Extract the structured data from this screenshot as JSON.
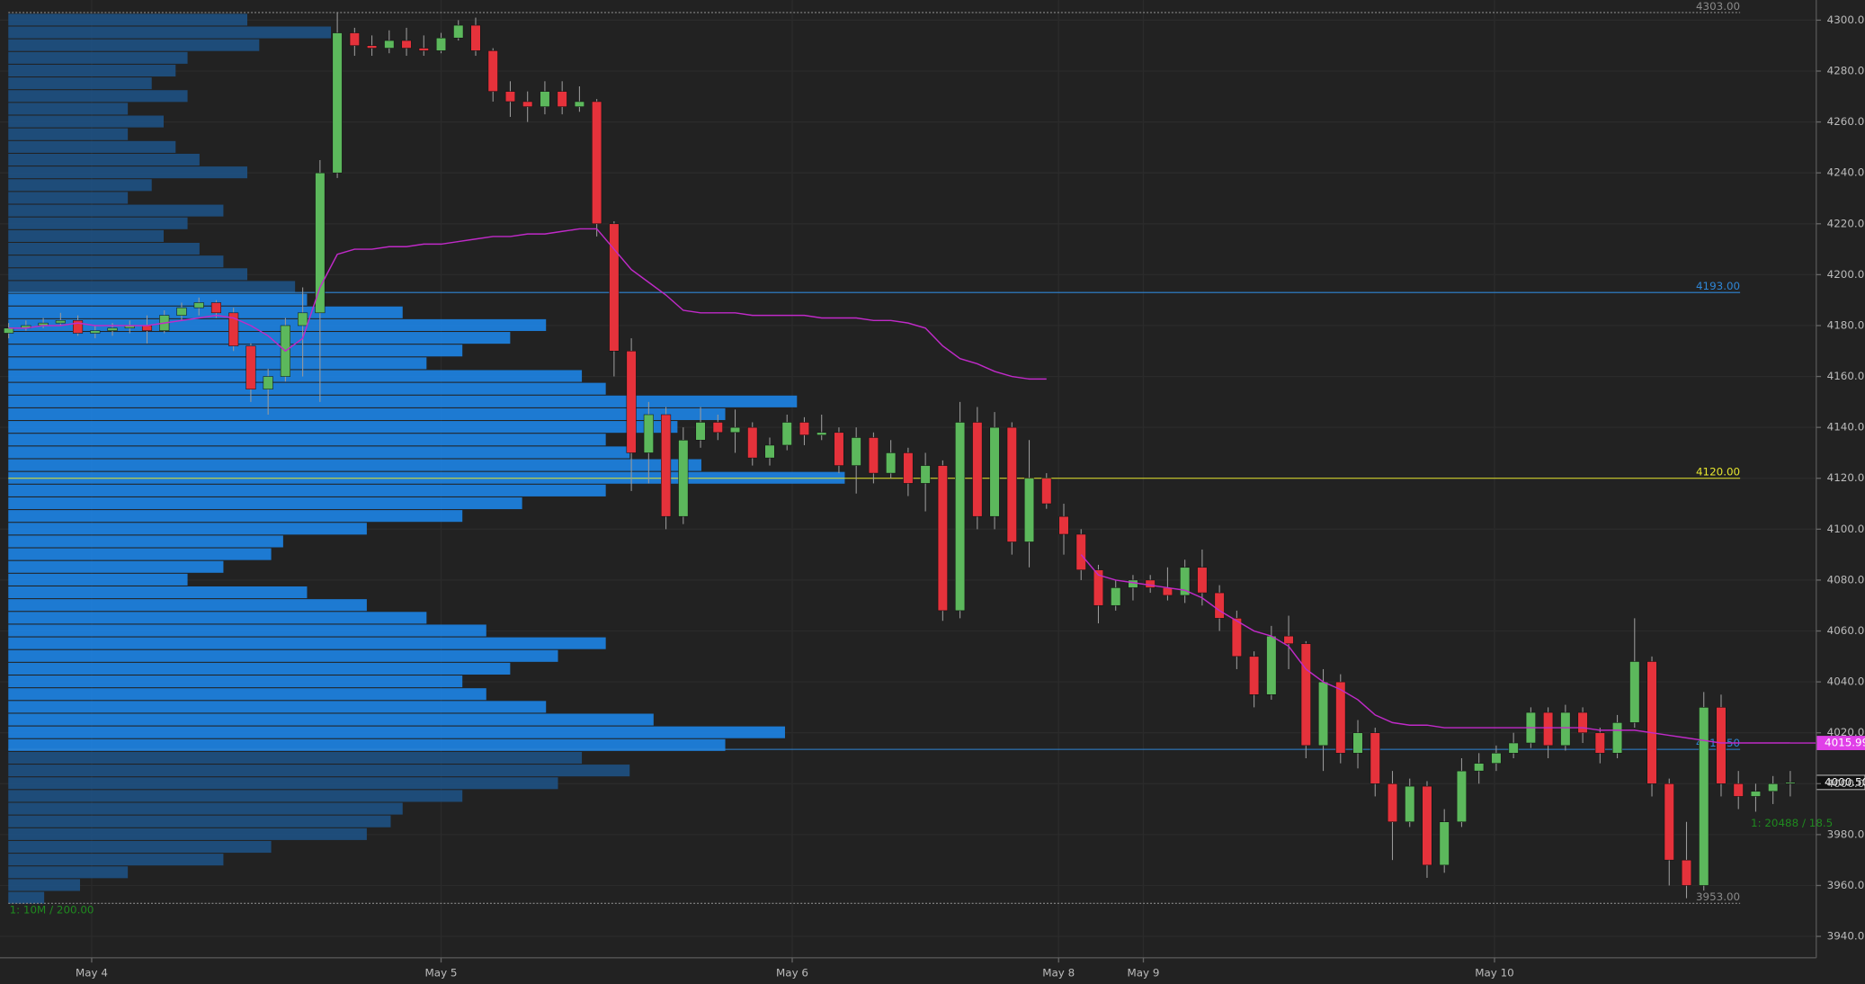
{
  "chart_data": {
    "type": "candlestick",
    "xlim": [
      -0.5,
      104.5
    ],
    "xticks": [
      {
        "value": 4.8,
        "label": "May 4"
      },
      {
        "value": 25.0,
        "label": "May 5"
      },
      {
        "value": 45.3,
        "label": "May 6"
      },
      {
        "value": 60.7,
        "label": "May 8"
      },
      {
        "value": 65.6,
        "label": "May 9"
      },
      {
        "value": 85.9,
        "label": "May 10"
      }
    ],
    "ylim": [
      3931.6,
      4307.9
    ],
    "yticks": [
      {
        "value": 3940,
        "label": "3940.00"
      },
      {
        "value": 3960,
        "label": "3960.00"
      },
      {
        "value": 3980,
        "label": "3980.00"
      },
      {
        "value": 4000,
        "label": "4000.00"
      },
      {
        "value": 4020,
        "label": "4020.00"
      },
      {
        "value": 4040,
        "label": "4040.00"
      },
      {
        "value": 4060,
        "label": "4060.00"
      },
      {
        "value": 4080,
        "label": "4080.00"
      },
      {
        "value": 4100,
        "label": "4100.00"
      },
      {
        "value": 4120,
        "label": "4120.00"
      },
      {
        "value": 4140,
        "label": "4140.00"
      },
      {
        "value": 4160,
        "label": "4160.00"
      },
      {
        "value": 4180,
        "label": "4180.00"
      },
      {
        "value": 4200,
        "label": "4200.00"
      },
      {
        "value": 4220,
        "label": "4220.00"
      },
      {
        "value": 4240,
        "label": "4240.00"
      },
      {
        "value": 4260,
        "label": "4260.00"
      },
      {
        "value": 4280,
        "label": "4280.00"
      },
      {
        "value": 4300,
        "label": "4300.00"
      }
    ],
    "grid": true,
    "up_color": "#5cb85c",
    "down_color": "#e5323b",
    "wick_color": "#9a9a9a",
    "open": [
      4177,
      4179,
      4180,
      4181,
      4182,
      4177,
      4178,
      4179,
      4180,
      4178,
      4184,
      4187,
      4189,
      4185,
      4172,
      4155,
      4160,
      4180,
      4185,
      4240,
      4295,
      4290,
      4289,
      4292,
      4289,
      4288,
      4293,
      4298,
      4288,
      4272,
      4268,
      4266,
      4272,
      4266,
      4268,
      4220,
      4170,
      4130,
      4145,
      4105,
      4135,
      4142,
      4138,
      4140,
      4128,
      4133,
      4142,
      4137,
      4138,
      4125,
      4136,
      4122,
      4130,
      4118,
      4125,
      4068,
      4142,
      4105,
      4140,
      4095,
      4120,
      4105,
      4098,
      4084,
      4070,
      4077,
      4080,
      4077,
      4074,
      4085,
      4075,
      4065,
      4050,
      4035,
      4058,
      4055,
      4015,
      4040,
      4012,
      4020,
      4000,
      3985,
      3999,
      3968,
      3985,
      4005,
      4008,
      4012,
      4016,
      4028,
      4015,
      4028,
      4020,
      4012,
      4024,
      4048,
      4000,
      3970,
      3960,
      4030,
      4000,
      3995,
      3997,
      4000
    ],
    "high": [
      4181,
      4182,
      4183,
      4185,
      4184,
      4180,
      4181,
      4182,
      4184,
      4186,
      4189,
      4191,
      4190,
      4187,
      4173,
      4163,
      4183,
      4195,
      4245,
      4303,
      4297,
      4294,
      4296,
      4297,
      4294,
      4295,
      4300,
      4301,
      4289,
      4276,
      4272,
      4276,
      4276,
      4274,
      4269,
      4221,
      4175,
      4150,
      4148,
      4140,
      4148,
      4145,
      4147,
      4142,
      4136,
      4145,
      4144,
      4145,
      4140,
      4140,
      4138,
      4135,
      4132,
      4130,
      4127,
      4150,
      4148,
      4146,
      4142,
      4135,
      4122,
      4110,
      4100,
      4086,
      4080,
      4082,
      4082,
      4085,
      4088,
      4092,
      4078,
      4068,
      4052,
      4062,
      4066,
      4056,
      4045,
      4043,
      4025,
      4022,
      4005,
      4002,
      4001,
      3990,
      4010,
      4012,
      4015,
      4020,
      4030,
      4030,
      4031,
      4030,
      4022,
      4027,
      4065,
      4050,
      4002,
      3985,
      4036,
      4035,
      4005,
      4000,
      4003,
      4005
    ],
    "low": [
      4175,
      4178,
      4179,
      4180,
      4176,
      4175,
      4176,
      4177,
      4173,
      4177,
      4182,
      4184,
      4183,
      4170,
      4150,
      4145,
      4158,
      4160,
      4150,
      4238,
      4286,
      4286,
      4287,
      4286,
      4286,
      4287,
      4292,
      4286,
      4268,
      4262,
      4260,
      4263,
      4263,
      4264,
      4215,
      4160,
      4115,
      4118,
      4100,
      4102,
      4132,
      4135,
      4130,
      4125,
      4125,
      4131,
      4133,
      4135,
      4122,
      4114,
      4118,
      4120,
      4113,
      4107,
      4064,
      4065,
      4100,
      4100,
      4090,
      4085,
      4108,
      4090,
      4080,
      4063,
      4068,
      4072,
      4075,
      4072,
      4071,
      4070,
      4060,
      4045,
      4030,
      4033,
      4045,
      4010,
      4005,
      4008,
      4006,
      3995,
      3970,
      3983,
      3963,
      3965,
      3983,
      4000,
      4005,
      4010,
      4014,
      4010,
      4013,
      4016,
      4008,
      4010,
      4022,
      3995,
      3960,
      3955,
      3958,
      3995,
      3990,
      3989,
      3992,
      3995
    ],
    "close": [
      4179,
      4180,
      4181,
      4182,
      4177,
      4178,
      4179,
      4180,
      4178,
      4184,
      4187,
      4189,
      4185,
      4172,
      4155,
      4160,
      4180,
      4185,
      4240,
      4295,
      4290,
      4289,
      4292,
      4289,
      4288,
      4293,
      4298,
      4288,
      4272,
      4268,
      4266,
      4272,
      4266,
      4268,
      4220,
      4170,
      4130,
      4145,
      4105,
      4135,
      4142,
      4138,
      4140,
      4128,
      4133,
      4142,
      4137,
      4138,
      4125,
      4136,
      4122,
      4130,
      4118,
      4125,
      4068,
      4142,
      4105,
      4140,
      4095,
      4120,
      4110,
      4098,
      4084,
      4070,
      4077,
      4080,
      4077,
      4074,
      4085,
      4075,
      4065,
      4050,
      4035,
      4058,
      4055,
      4015,
      4040,
      4012,
      4020,
      4000,
      3985,
      3999,
      3968,
      3985,
      4005,
      4008,
      4012,
      4016,
      4028,
      4015,
      4028,
      4020,
      4012,
      4024,
      4048,
      4000,
      3970,
      3960,
      4030,
      4000,
      3995,
      3997,
      4000,
      4000.5
    ],
    "vwap": {
      "color": "#c02ac8",
      "values": [
        4179,
        4179,
        4180,
        4180,
        4181,
        4180,
        4180,
        4180,
        4180,
        4181,
        4182,
        4183,
        4184,
        4183,
        4180,
        4176,
        4170,
        4175,
        4195,
        4208,
        4210,
        4210,
        4211,
        4211,
        4212,
        4212,
        4213,
        4214,
        4215,
        4215,
        4216,
        4216,
        4217,
        4218,
        4218,
        4210,
        4202,
        4197,
        4192,
        4186,
        4185,
        4185,
        4185,
        4184,
        4184,
        4184,
        4184,
        4183,
        4183,
        4183,
        4182,
        4182,
        4181,
        4179,
        4172,
        4167,
        4165,
        4162,
        4160,
        4159,
        4159,
        null,
        4090,
        4082,
        4080,
        4079,
        4078,
        4077,
        4076,
        4073,
        4068,
        4064,
        4060,
        4058,
        4054,
        4045,
        4040,
        4037,
        4033,
        4027,
        4024,
        4023,
        4023,
        4022,
        4022,
        4022,
        4022,
        4022,
        4022,
        4022,
        4022,
        4022,
        4021,
        4021,
        4021,
        4020,
        4019,
        4018,
        4017,
        4016,
        4016,
        4016,
        4016,
        4016
      ],
      "last": {
        "value": 4015.99,
        "label": "4015.99"
      }
    },
    "last_price": {
      "value": 4000.5,
      "label": "4000.50"
    },
    "levels": [
      {
        "value": 4303,
        "label": "4303.00",
        "color": "#8a8a8a",
        "style": "dotted"
      },
      {
        "value": 4193,
        "label": "4193.00",
        "color": "#2f86d6",
        "style": "value-area"
      },
      {
        "value": 4120,
        "label": "4120.00",
        "color": "#e6e62e",
        "style": "poc"
      },
      {
        "value": 4013.5,
        "label": "4013.50",
        "color": "#2f86d6",
        "style": "value-area"
      },
      {
        "value": 3953,
        "label": "3953.00",
        "color": "#8a8a8a",
        "style": "dotted"
      }
    ],
    "profile": {
      "xlim": [
        0,
        1520
      ],
      "color": "#1f4f7e",
      "value_area_color": "#1e80dc",
      "prices": [
        4300,
        4295,
        4290,
        4285,
        4280,
        4275,
        4270,
        4265,
        4260,
        4255,
        4250,
        4245,
        4240,
        4235,
        4230,
        4225,
        4220,
        4215,
        4210,
        4205,
        4200,
        4195,
        4190,
        4185,
        4180,
        4175,
        4170,
        4165,
        4160,
        4155,
        4150,
        4145,
        4140,
        4135,
        4130,
        4125,
        4120,
        4115,
        4110,
        4105,
        4100,
        4095,
        4090,
        4085,
        4080,
        4075,
        4070,
        4065,
        4060,
        4055,
        4050,
        4045,
        4040,
        4035,
        4030,
        4025,
        4020,
        4015,
        4010,
        4005,
        4000,
        3995,
        3990,
        3985,
        3980,
        3975,
        3970,
        3965,
        3960,
        3955
      ],
      "values": [
        200,
        270,
        210,
        150,
        140,
        120,
        150,
        100,
        130,
        100,
        140,
        160,
        200,
        120,
        100,
        180,
        150,
        130,
        160,
        180,
        200,
        240,
        250,
        330,
        450,
        420,
        380,
        350,
        480,
        500,
        660,
        600,
        560,
        500,
        520,
        580,
        700,
        500,
        430,
        380,
        300,
        230,
        220,
        180,
        150,
        250,
        300,
        350,
        400,
        500,
        460,
        420,
        380,
        400,
        450,
        540,
        650,
        600,
        480,
        520,
        460,
        380,
        330,
        320,
        300,
        220,
        180,
        100,
        60,
        30
      ]
    },
    "annotations": [
      "1: 10M / 200.00",
      "1: 20488 / 18.5"
    ]
  }
}
